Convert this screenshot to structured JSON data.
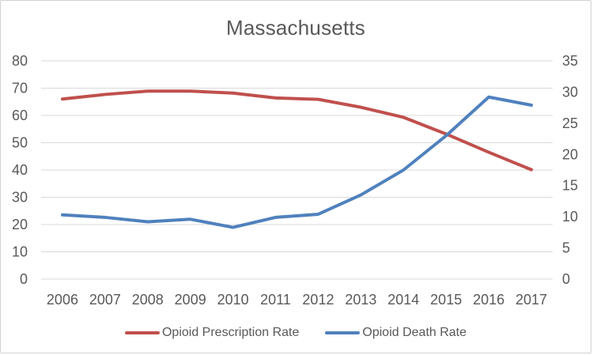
{
  "title": "Massachusetts",
  "colors": {
    "prescription_line": "#c0504d",
    "death_line": "#4f81bd",
    "gridline": "#d9d9d9",
    "axis_text": "#595959",
    "card_border": "#d2d2d2",
    "background": "#ffffff"
  },
  "chart_data": {
    "type": "line",
    "title": "Massachusetts",
    "categories": [
      "2006",
      "2007",
      "2008",
      "2009",
      "2010",
      "2011",
      "2012",
      "2013",
      "2014",
      "2015",
      "2016",
      "2017"
    ],
    "series": [
      {
        "name": "Opioid Prescription Rate",
        "axis": "left",
        "color": "#c0504d",
        "values": [
          66.0,
          67.7,
          68.9,
          68.9,
          68.2,
          66.4,
          65.9,
          63.0,
          59.3,
          53.2,
          46.5,
          40.1
        ]
      },
      {
        "name": "Opioid Death Rate",
        "axis": "right",
        "color": "#4f81bd",
        "values": [
          10.3,
          9.9,
          9.2,
          9.6,
          8.3,
          9.9,
          10.4,
          13.5,
          17.5,
          23.0,
          29.2,
          27.9
        ]
      }
    ],
    "axes": {
      "left": {
        "min": 0,
        "max": 80,
        "step": 10,
        "ticks": [
          0,
          10,
          20,
          30,
          40,
          50,
          60,
          70,
          80
        ]
      },
      "right": {
        "min": 0,
        "max": 35,
        "step": 5,
        "ticks": [
          0,
          5,
          10,
          15,
          20,
          25,
          30,
          35
        ]
      }
    },
    "grid": true,
    "legend_position": "bottom",
    "xlabel": "",
    "ylabel_left": "",
    "ylabel_right": ""
  }
}
